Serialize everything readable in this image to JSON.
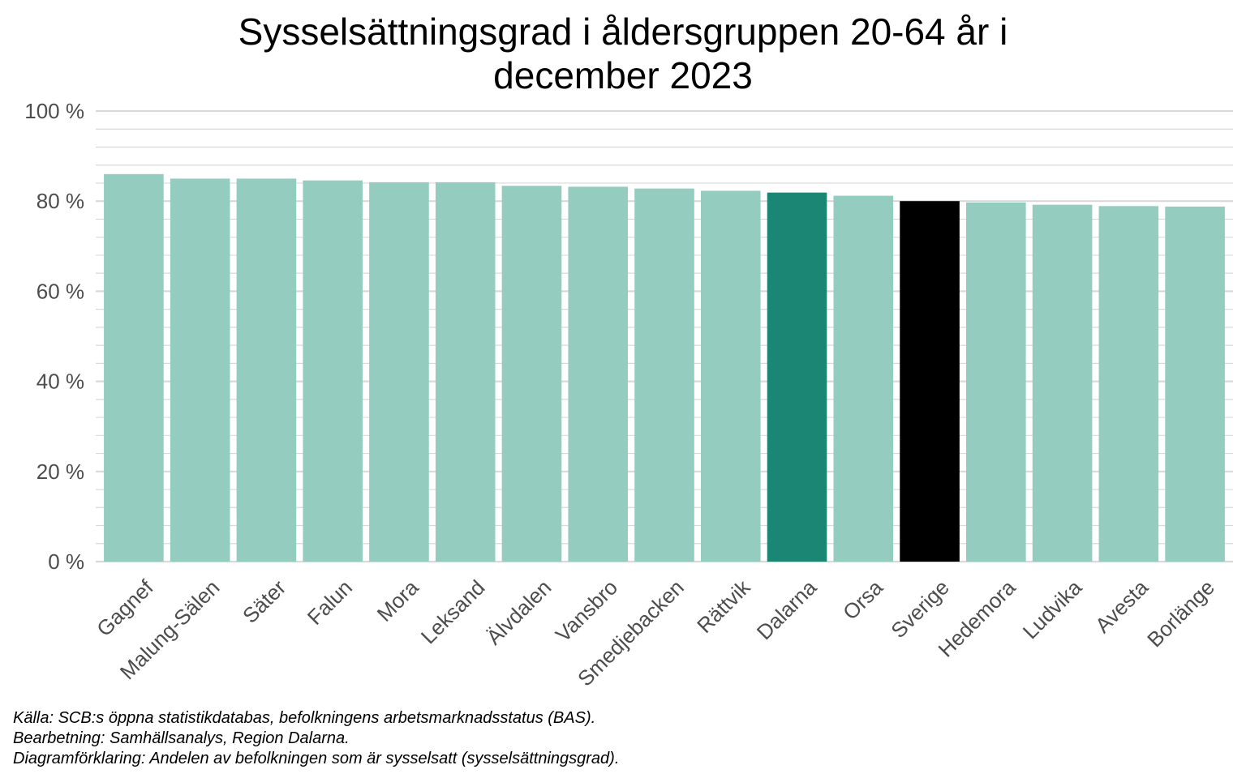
{
  "chart_data": {
    "type": "bar",
    "title_lines": [
      "Sysselsättningsgrad i åldersgruppen 20-64 år i",
      "december 2023"
    ],
    "xlabel": "",
    "ylabel": "",
    "ylim": [
      0,
      100
    ],
    "yticks": [
      0,
      20,
      40,
      60,
      80,
      100
    ],
    "ytick_labels": [
      "0 %",
      "20 %",
      "40 %",
      "60 %",
      "80 %",
      "100 %"
    ],
    "grid": true,
    "categories": [
      "Gagnef",
      "Malung-Sälen",
      "Säter",
      "Falun",
      "Mora",
      "Leksand",
      "Älvdalen",
      "Vansbro",
      "Smedjebacken",
      "Rättvik",
      "Dalarna",
      "Orsa",
      "Sverige",
      "Hedemora",
      "Ludvika",
      "Avesta",
      "Borlänge"
    ],
    "values": [
      86.0,
      85.0,
      85.0,
      84.6,
      84.2,
      84.2,
      83.4,
      83.2,
      82.8,
      82.3,
      81.9,
      81.2,
      80.0,
      79.7,
      79.2,
      78.9,
      78.8
    ],
    "bar_colors": [
      "#94ccbf",
      "#94ccbf",
      "#94ccbf",
      "#94ccbf",
      "#94ccbf",
      "#94ccbf",
      "#94ccbf",
      "#94ccbf",
      "#94ccbf",
      "#94ccbf",
      "#1a8673",
      "#94ccbf",
      "#000000",
      "#94ccbf",
      "#94ccbf",
      "#94ccbf",
      "#94ccbf"
    ]
  },
  "caption": {
    "source": "Källa: SCB:s öppna statistikdatabas, befolkningens arbetsmarknadsstatus (BAS).",
    "processing": "Bearbetning: Samhällsanalys, Region Dalarna.",
    "explanation": "Diagramförklaring: Andelen av befolkningen som är sysselsatt (sysselsättningsgrad)."
  },
  "colors": {
    "gridline": "#d9d9d9",
    "axis_text": "#4d4d4d"
  }
}
